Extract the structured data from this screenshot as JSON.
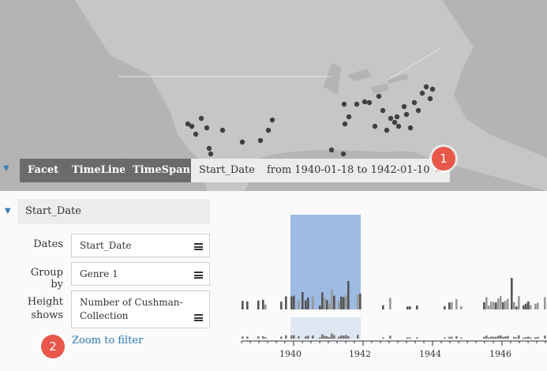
{
  "filter_bar": {
    "chips": [
      {
        "label": "Facet",
        "style": "dark"
      },
      {
        "label": "TimeLine",
        "style": "dark"
      },
      {
        "label": "TimeSpan",
        "style": "dark"
      },
      {
        "label": "Start_Date",
        "style": "light"
      },
      {
        "label": "from 1940-01-18 to 1942-01-10",
        "style": "light"
      }
    ],
    "remove_icon": "close-icon"
  },
  "badges": {
    "one": "1",
    "two": "2"
  },
  "section": {
    "title": "Start_Date"
  },
  "settings": {
    "dates_label": "Dates",
    "dates_value": "Start_Date",
    "group_label": "Group by",
    "group_value": "Genre 1",
    "height_label": "Height shows",
    "height_value": "Number of Cushman-Collection"
  },
  "zoom_link": "Zoom to filter",
  "colors": {
    "selection": "#9dbbe3",
    "selection_light": "#dfe7f2",
    "dark_chip": "#6b6b6b",
    "link": "#2a7ab8",
    "badge": "#e8574a"
  },
  "chart_data": {
    "type": "bar",
    "x_ticks": [
      "1940",
      "1942",
      "1944",
      "1946"
    ],
    "selection": {
      "from": "1940-01-18",
      "to": "1942-01-10"
    }
  }
}
